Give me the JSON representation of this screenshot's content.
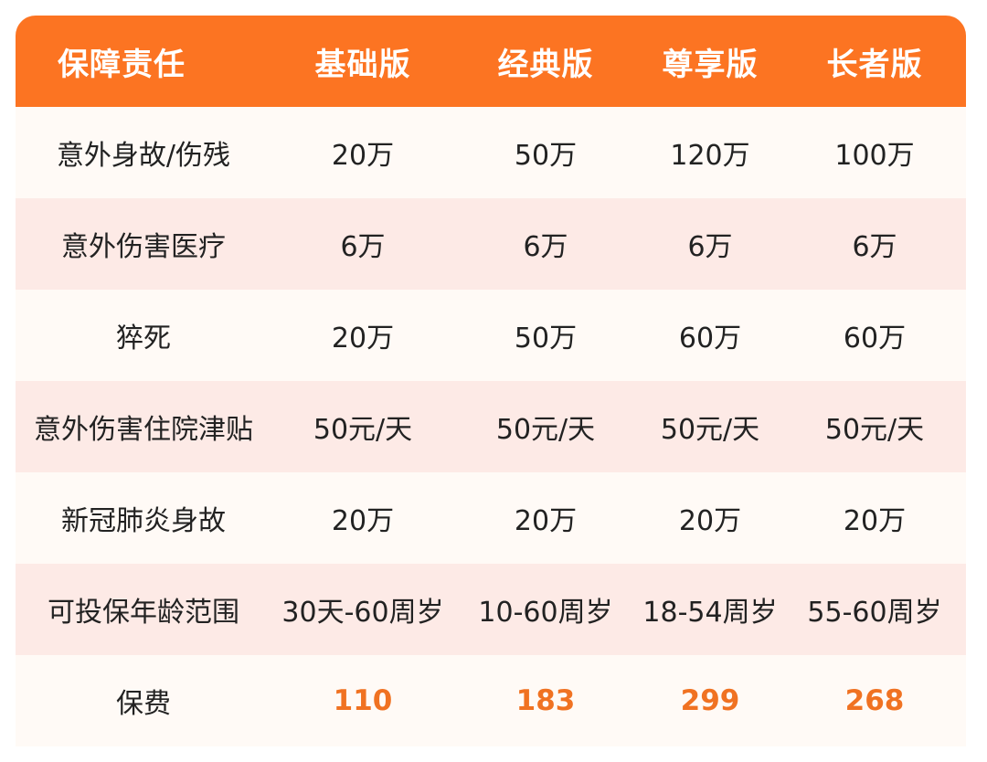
{
  "header": [
    "保障责任",
    "基础版",
    "经典版",
    "尊享版",
    "长者版"
  ],
  "rows": [
    [
      "意外身故/伤残",
      "20万",
      "50万",
      "120万",
      "100万"
    ],
    [
      "意外伤害医疗",
      "6万",
      "6万",
      "6万",
      "6万"
    ],
    [
      "猝死",
      "20万",
      "50万",
      "60万",
      "60万"
    ],
    [
      "意外伤害住院津贴",
      "50元/天",
      "50元/天",
      "50元/天",
      "50元/天"
    ],
    [
      "新冠肺炎身故",
      "20万",
      "20万",
      "20万",
      "20万"
    ],
    [
      "可投保年龄范围",
      "30天-60周岁",
      "10-60周岁",
      "18-54周岁",
      "55-60周岁"
    ],
    [
      "保费",
      "110",
      "183",
      "299",
      "268"
    ]
  ],
  "colors": {
    "header_bg": "#fc7422",
    "row_light": "#fffaf6",
    "row_pink": "#fdeae6",
    "price": "#f07222"
  }
}
